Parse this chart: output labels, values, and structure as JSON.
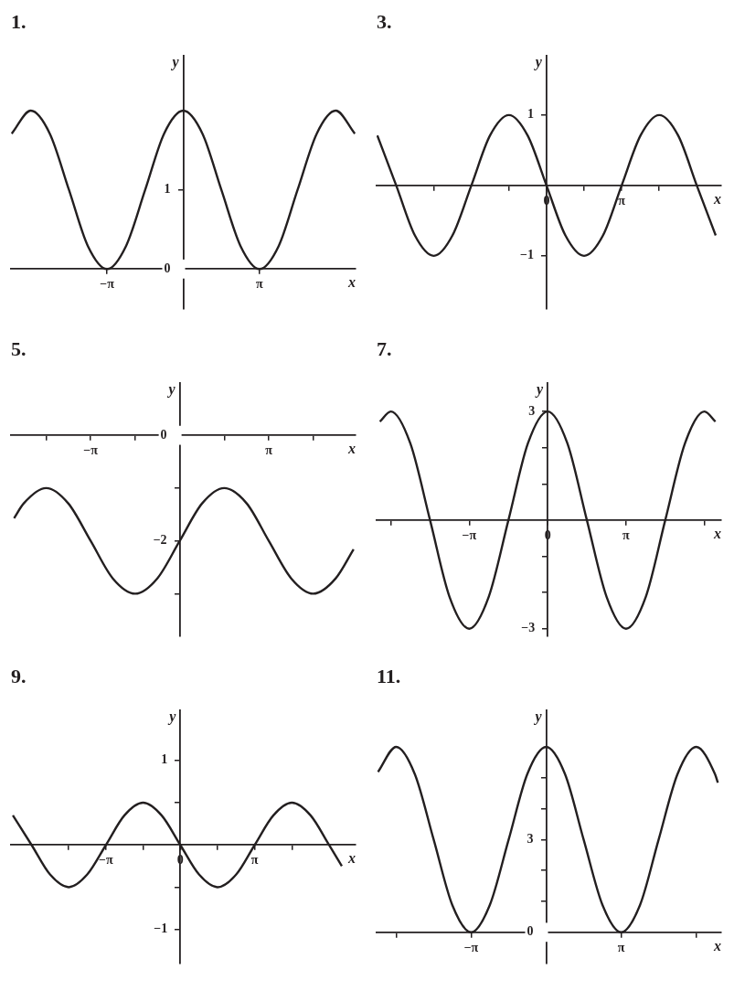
{
  "chart_data": [
    {
      "type": "line",
      "title": "1.",
      "xlabel": "x",
      "ylabel": "y",
      "x": [
        -7.07,
        -6.28,
        -5.5,
        -4.71,
        -3.93,
        -3.14,
        -2.36,
        -1.57,
        -0.79,
        0,
        0.79,
        1.57,
        2.36,
        3.14,
        3.93,
        4.71,
        5.5,
        6.28,
        7.07
      ],
      "series": [
        {
          "color": "#231f20",
          "values": [
            1.71,
            2,
            1.71,
            1,
            0.29,
            0,
            0.29,
            1,
            1.71,
            2,
            1.71,
            1,
            0.29,
            0,
            0.29,
            1,
            1.71,
            2,
            1.71
          ]
        }
      ],
      "xlim": [
        -7.1,
        7.1
      ],
      "ylim": [
        -0.5,
        2.7
      ],
      "xticks": [
        {
          "value": -3.14,
          "label": "−π"
        },
        {
          "value": 3.14,
          "label": "π"
        }
      ],
      "yticks": [
        0,
        1
      ]
    },
    {
      "type": "line",
      "title": "3.",
      "xlabel": "x",
      "ylabel": "y",
      "x": [
        -7.07,
        -6.28,
        -5.5,
        -4.71,
        -3.93,
        -3.14,
        -2.36,
        -1.57,
        -0.79,
        0,
        0.79,
        1.57,
        2.36,
        3.14,
        3.93,
        4.71,
        5.5,
        6.28,
        7.07
      ],
      "series": [
        {
          "color": "#231f20",
          "values": [
            0.71,
            0,
            -0.71,
            -1,
            -0.71,
            0,
            0.71,
            1,
            0.71,
            0,
            -0.71,
            -1,
            -0.71,
            0,
            0.71,
            1,
            0.71,
            0,
            -0.71
          ]
        }
      ],
      "xlim": [
        -7.1,
        7.3
      ],
      "ylim": [
        -1.75,
        1.85
      ],
      "xticks": [
        {
          "value": -4.71,
          "label": null
        },
        {
          "value": -1.57,
          "label": null
        },
        {
          "value": 0,
          "label": "0"
        },
        {
          "value": 1.57,
          "label": null
        },
        {
          "value": 3.14,
          "label": "π"
        },
        {
          "value": 4.71,
          "label": null
        }
      ],
      "yticks": [
        {
          "value": -1,
          "label": "−1"
        },
        1
      ]
    },
    {
      "type": "line",
      "title": "5.",
      "xlabel": "x",
      "ylabel": "y",
      "x": [
        -5.84,
        -5.5,
        -4.71,
        -3.93,
        -3.14,
        -2.36,
        -1.57,
        -0.79,
        0,
        0.79,
        1.57,
        2.36,
        3.14,
        3.93,
        4.71,
        5.5,
        6.13
      ],
      "series": [
        {
          "color": "#231f20",
          "values": [
            -1.57,
            -1.29,
            -1,
            -1.29,
            -2,
            -2.71,
            -3,
            -2.71,
            -2,
            -1.29,
            -1,
            -1.29,
            -2,
            -2.71,
            -3,
            -2.71,
            -2.16
          ]
        }
      ],
      "xlim": [
        -5.95,
        6.2
      ],
      "ylim": [
        -3.8,
        1
      ],
      "xticks": [
        {
          "value": -4.71,
          "label": null
        },
        {
          "value": -3.14,
          "label": "−π"
        },
        {
          "value": -1.57,
          "label": null
        },
        {
          "value": 1.57,
          "label": null
        },
        {
          "value": 3.14,
          "label": "π"
        },
        {
          "value": 4.71,
          "label": null
        }
      ],
      "yticks": [
        0,
        {
          "value": -1,
          "label": null
        },
        {
          "value": -2,
          "label": "−2"
        },
        {
          "value": -3,
          "label": null
        }
      ]
    },
    {
      "type": "line",
      "title": "7.",
      "xlabel": "x",
      "ylabel": "y",
      "x": [
        -6.72,
        -6.28,
        -5.5,
        -4.71,
        -3.93,
        -3.14,
        -2.36,
        -1.57,
        -0.79,
        0,
        0.79,
        1.57,
        2.36,
        3.14,
        3.93,
        4.71,
        5.5,
        6.28,
        6.72
      ],
      "series": [
        {
          "color": "#231f20",
          "values": [
            2.72,
            3,
            2.12,
            0,
            -2.12,
            -3,
            -2.12,
            0,
            2.12,
            3,
            2.12,
            0,
            -2.12,
            -3,
            -2.12,
            0,
            2.12,
            3,
            2.72
          ]
        }
      ],
      "xlim": [
        -6.85,
        6.95
      ],
      "ylim": [
        -3.2,
        3.8
      ],
      "xticks": [
        {
          "value": -6.28,
          "label": null
        },
        {
          "value": -3.14,
          "label": "−π"
        },
        {
          "value": 0,
          "label": "0"
        },
        {
          "value": 3.14,
          "label": "π"
        },
        {
          "value": 6.28,
          "label": null
        }
      ],
      "yticks": [
        {
          "value": -3,
          "label": "−3"
        },
        {
          "value": -2,
          "label": null
        },
        {
          "value": -1,
          "label": null
        },
        {
          "value": 1,
          "label": null
        },
        {
          "value": 2,
          "label": null
        },
        3
      ]
    },
    {
      "type": "line",
      "title": "9.",
      "xlabel": "x",
      "ylabel": "y",
      "x": [
        -7.07,
        -6.28,
        -5.5,
        -4.71,
        -3.93,
        -3.14,
        -2.36,
        -1.57,
        -0.79,
        0,
        0.79,
        1.57,
        2.36,
        3.14,
        3.93,
        4.71,
        5.5,
        6.28,
        6.82
      ],
      "series": [
        {
          "color": "#231f20",
          "values": [
            0.35,
            0,
            -0.35,
            -0.5,
            -0.35,
            0,
            0.35,
            0.5,
            0.35,
            0,
            -0.35,
            -0.5,
            -0.35,
            0,
            0.35,
            0.5,
            0.35,
            0,
            -0.25
          ]
        }
      ],
      "xlim": [
        -7.15,
        7.4
      ],
      "ylim": [
        -1.4,
        1.6
      ],
      "xticks": [
        {
          "value": -4.71,
          "label": null
        },
        {
          "value": -3.14,
          "label": "−π"
        },
        {
          "value": -1.57,
          "label": null
        },
        {
          "value": 0,
          "label": "0"
        },
        {
          "value": 1.57,
          "label": null
        },
        {
          "value": 3.14,
          "label": "π"
        },
        {
          "value": 4.71,
          "label": null
        }
      ],
      "yticks": [
        {
          "value": -1,
          "label": "−1"
        },
        {
          "value": -0.5,
          "label": null
        },
        {
          "value": 0.5,
          "label": null
        },
        1
      ]
    },
    {
      "type": "line",
      "title": "11.",
      "xlabel": "x",
      "ylabel": "y",
      "x": [
        -7.04,
        -6.28,
        -5.5,
        -4.71,
        -3.93,
        -3.14,
        -2.36,
        -1.57,
        -0.79,
        0,
        0.79,
        1.57,
        2.36,
        3.14,
        3.93,
        4.71,
        5.5,
        6.28,
        7.07,
        7.19
      ],
      "series": [
        {
          "color": "#231f20",
          "values": [
            5.19,
            6,
            5.12,
            3,
            0.88,
            0,
            0.88,
            3,
            5.12,
            6,
            5.12,
            3,
            0.88,
            0,
            0.88,
            3,
            5.12,
            6,
            5.12,
            4.84
          ]
        }
      ],
      "xlim": [
        -7.1,
        7.33
      ],
      "ylim": [
        -1,
        7.2
      ],
      "xticks": [
        {
          "value": -6.28,
          "label": null
        },
        {
          "value": -3.14,
          "label": "−π"
        },
        {
          "value": 3.14,
          "label": "π"
        },
        {
          "value": 6.28,
          "label": null
        }
      ],
      "yticks": [
        0,
        {
          "value": 1,
          "label": null
        },
        {
          "value": 2,
          "label": null
        },
        3,
        {
          "value": 4,
          "label": null
        },
        {
          "value": 5,
          "label": null
        }
      ]
    }
  ]
}
